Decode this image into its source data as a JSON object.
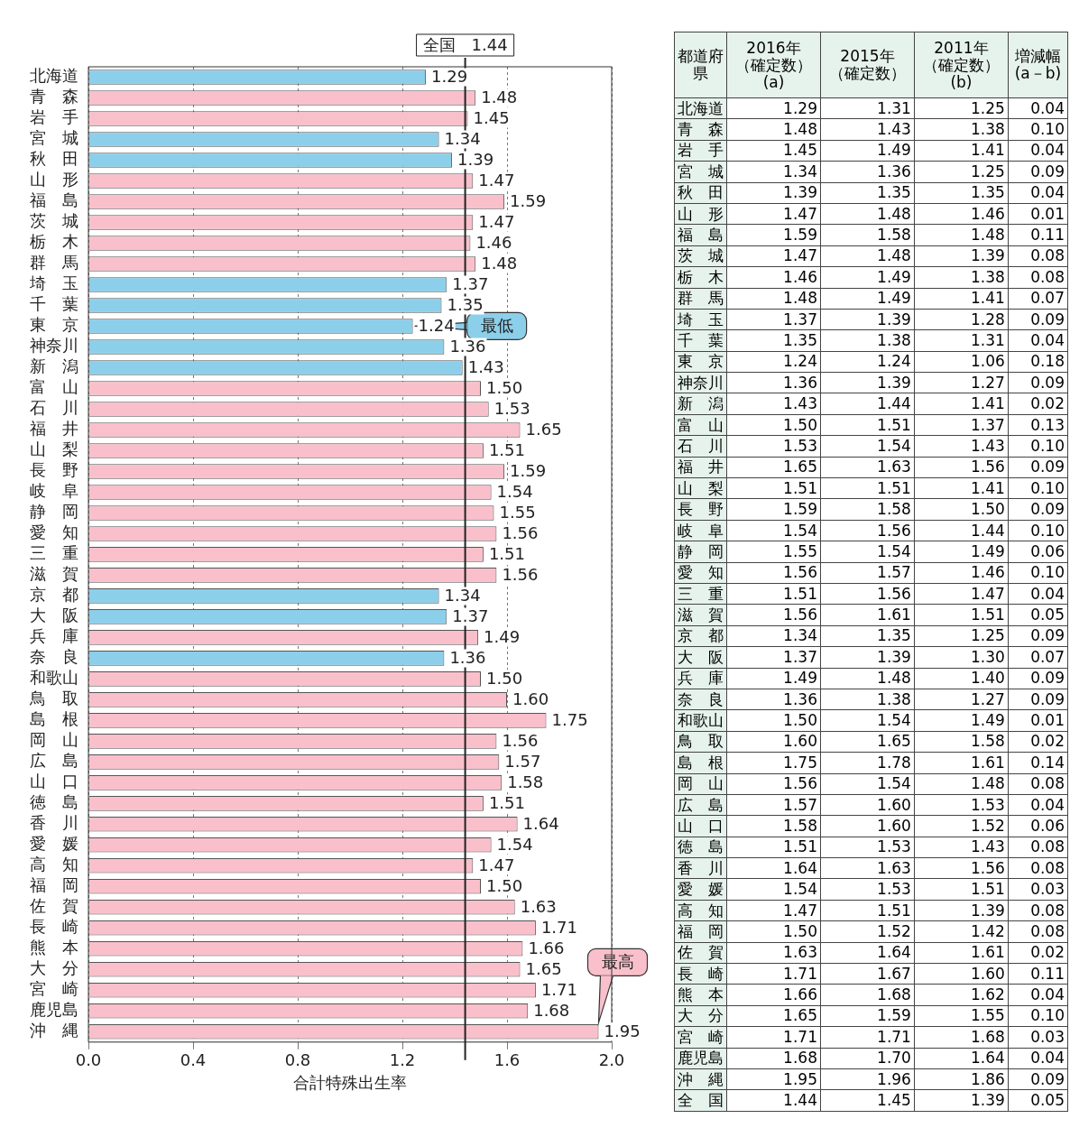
{
  "chart_data": [
    {
      "type": "bar",
      "orientation": "horizontal",
      "xlabel": "合計特殊出生率",
      "categories": [
        "北海道",
        "青　森",
        "岩　手",
        "宮　城",
        "秋　田",
        "山　形",
        "福　島",
        "茨　城",
        "栃　木",
        "群　馬",
        "埼　玉",
        "千　葉",
        "東　京",
        "神奈川",
        "新　潟",
        "富　山",
        "石　川",
        "福　井",
        "山　梨",
        "長　野",
        "岐　阜",
        "静　岡",
        "愛　知",
        "三　重",
        "滋　賀",
        "京　都",
        "大　阪",
        "兵　庫",
        "奈　良",
        "和歌山",
        "鳥　取",
        "島　根",
        "岡　山",
        "広　島",
        "山　口",
        "徳　島",
        "香　川",
        "愛　媛",
        "高　知",
        "福　岡",
        "佐　賀",
        "長　崎",
        "熊　本",
        "大　分",
        "宮　崎",
        "鹿児島",
        "沖　縄"
      ],
      "values": [
        1.29,
        1.48,
        1.45,
        1.34,
        1.39,
        1.47,
        1.59,
        1.47,
        1.46,
        1.48,
        1.37,
        1.35,
        1.24,
        1.36,
        1.43,
        1.5,
        1.53,
        1.65,
        1.51,
        1.59,
        1.54,
        1.55,
        1.56,
        1.51,
        1.56,
        1.34,
        1.37,
        1.49,
        1.36,
        1.5,
        1.6,
        1.75,
        1.56,
        1.57,
        1.58,
        1.51,
        1.64,
        1.54,
        1.47,
        1.5,
        1.63,
        1.71,
        1.66,
        1.65,
        1.71,
        1.68,
        1.95
      ],
      "value_labels": [
        "1.29",
        "1.48",
        "1.45",
        "1.34",
        "1.39",
        "1.47",
        "1.59",
        "1.47",
        "1.46",
        "1.48",
        "1.37",
        "1.35",
        "1.24",
        "1.36",
        "1.43",
        "1.50",
        "1.53",
        "1.65",
        "1.51",
        "1.59",
        "1.54",
        "1.55",
        "1.56",
        "1.51",
        "1.56",
        "1.34",
        "1.37",
        "1.49",
        "1.36",
        "1.50",
        "1.60",
        "1.75",
        "1.56",
        "1.57",
        "1.58",
        "1.51",
        "1.64",
        "1.54",
        "1.47",
        "1.50",
        "1.63",
        "1.71",
        "1.66",
        "1.65",
        "1.71",
        "1.68",
        "1.95"
      ],
      "colors": [
        "#8ccfea",
        "#f9c0cb",
        "#f9c0cb",
        "#8ccfea",
        "#8ccfea",
        "#f9c0cb",
        "#f9c0cb",
        "#f9c0cb",
        "#f9c0cb",
        "#f9c0cb",
        "#8ccfea",
        "#8ccfea",
        "#8ccfea",
        "#8ccfea",
        "#8ccfea",
        "#f9c0cb",
        "#f9c0cb",
        "#f9c0cb",
        "#f9c0cb",
        "#f9c0cb",
        "#f9c0cb",
        "#f9c0cb",
        "#f9c0cb",
        "#f9c0cb",
        "#f9c0cb",
        "#8ccfea",
        "#8ccfea",
        "#f9c0cb",
        "#8ccfea",
        "#f9c0cb",
        "#f9c0cb",
        "#f9c0cb",
        "#f9c0cb",
        "#f9c0cb",
        "#f9c0cb",
        "#f9c0cb",
        "#f9c0cb",
        "#f9c0cb",
        "#f9c0cb",
        "#f9c0cb",
        "#f9c0cb",
        "#f9c0cb",
        "#f9c0cb",
        "#f9c0cb",
        "#f9c0cb",
        "#f9c0cb",
        "#f9c0cb"
      ],
      "xlim": [
        0,
        2.0
      ],
      "xticks": [
        {
          "value": 0,
          "label": "0.0"
        },
        {
          "value": 0.4,
          "label": "0.4"
        },
        {
          "value": 0.8,
          "label": "0.8"
        },
        {
          "value": 1.2,
          "label": "1.2"
        },
        {
          "value": 1.6,
          "label": "1.6"
        },
        {
          "value": 2.0,
          "label": "2.0"
        }
      ],
      "grid": "x",
      "ref_lines": [
        {
          "axis": "x",
          "value": 1.44,
          "label": "全国　1.44",
          "color": "#222222"
        }
      ],
      "annotations": [
        {
          "text": "最低",
          "x": 1.24,
          "y": "東　京"
        },
        {
          "text": "最高",
          "x": 1.95,
          "y": "沖　縄"
        }
      ]
    },
    {
      "type": "heatmap",
      "ylabel": "都道府県",
      "categories": [
        "2016年（確定数）(a)",
        "2015年（確定数）",
        "2011年（確定数）(b)",
        "増減幅(a－b)"
      ],
      "y_categories": [
        "北海道",
        "青　森",
        "岩　手",
        "宮　城",
        "秋　田",
        "山　形",
        "福　島",
        "茨　城",
        "栃　木",
        "群　馬",
        "埼　玉",
        "千　葉",
        "東　京",
        "神奈川",
        "新　潟",
        "富　山",
        "石　川",
        "福　井",
        "山　梨",
        "長　野",
        "岐　阜",
        "静　岡",
        "愛　知",
        "三　重",
        "滋　賀",
        "京　都",
        "大　阪",
        "兵　庫",
        "奈　良",
        "和歌山",
        "鳥　取",
        "島　根",
        "岡　山",
        "広　島",
        "山　口",
        "徳　島",
        "香　川",
        "愛　媛",
        "高　知",
        "福　岡",
        "佐　賀",
        "長　崎",
        "熊　本",
        "大　分",
        "宮　崎",
        "鹿児島",
        "沖　縄",
        "全　国"
      ],
      "cells": [
        [
          1.29,
          1.31,
          1.25,
          0.04
        ],
        [
          1.48,
          1.43,
          1.38,
          0.1
        ],
        [
          1.45,
          1.49,
          1.41,
          0.04
        ],
        [
          1.34,
          1.36,
          1.25,
          0.09
        ],
        [
          1.39,
          1.35,
          1.35,
          0.04
        ],
        [
          1.47,
          1.48,
          1.46,
          0.01
        ],
        [
          1.59,
          1.58,
          1.48,
          0.11
        ],
        [
          1.47,
          1.48,
          1.39,
          0.08
        ],
        [
          1.46,
          1.49,
          1.38,
          0.08
        ],
        [
          1.48,
          1.49,
          1.41,
          0.07
        ],
        [
          1.37,
          1.39,
          1.28,
          0.09
        ],
        [
          1.35,
          1.38,
          1.31,
          0.04
        ],
        [
          1.24,
          1.24,
          1.06,
          0.18
        ],
        [
          1.36,
          1.39,
          1.27,
          0.09
        ],
        [
          1.43,
          1.44,
          1.41,
          0.02
        ],
        [
          1.5,
          1.51,
          1.37,
          0.13
        ],
        [
          1.53,
          1.54,
          1.43,
          0.1
        ],
        [
          1.65,
          1.63,
          1.56,
          0.09
        ],
        [
          1.51,
          1.51,
          1.41,
          0.1
        ],
        [
          1.59,
          1.58,
          1.5,
          0.09
        ],
        [
          1.54,
          1.56,
          1.44,
          0.1
        ],
        [
          1.55,
          1.54,
          1.49,
          0.06
        ],
        [
          1.56,
          1.57,
          1.46,
          0.1
        ],
        [
          1.51,
          1.56,
          1.47,
          0.04
        ],
        [
          1.56,
          1.61,
          1.51,
          0.05
        ],
        [
          1.34,
          1.35,
          1.25,
          0.09
        ],
        [
          1.37,
          1.39,
          1.3,
          0.07
        ],
        [
          1.49,
          1.48,
          1.4,
          0.09
        ],
        [
          1.36,
          1.38,
          1.27,
          0.09
        ],
        [
          1.5,
          1.54,
          1.49,
          0.01
        ],
        [
          1.6,
          1.65,
          1.58,
          0.02
        ],
        [
          1.75,
          1.78,
          1.61,
          0.14
        ],
        [
          1.56,
          1.54,
          1.48,
          0.08
        ],
        [
          1.57,
          1.6,
          1.53,
          0.04
        ],
        [
          1.58,
          1.6,
          1.52,
          0.06
        ],
        [
          1.51,
          1.53,
          1.43,
          0.08
        ],
        [
          1.64,
          1.63,
          1.56,
          0.08
        ],
        [
          1.54,
          1.53,
          1.51,
          0.03
        ],
        [
          1.47,
          1.51,
          1.39,
          0.08
        ],
        [
          1.5,
          1.52,
          1.42,
          0.08
        ],
        [
          1.63,
          1.64,
          1.61,
          0.02
        ],
        [
          1.71,
          1.67,
          1.6,
          0.11
        ],
        [
          1.66,
          1.68,
          1.62,
          0.04
        ],
        [
          1.65,
          1.59,
          1.55,
          0.1
        ],
        [
          1.71,
          1.71,
          1.68,
          0.03
        ],
        [
          1.68,
          1.7,
          1.64,
          0.04
        ],
        [
          1.95,
          1.96,
          1.86,
          0.09
        ],
        [
          1.44,
          1.45,
          1.39,
          0.05
        ]
      ],
      "cell_labels": [
        [
          "1.29",
          "1.31",
          "1.25",
          "0.04"
        ],
        [
          "1.48",
          "1.43",
          "1.38",
          "0.10"
        ],
        [
          "1.45",
          "1.49",
          "1.41",
          "0.04"
        ],
        [
          "1.34",
          "1.36",
          "1.25",
          "0.09"
        ],
        [
          "1.39",
          "1.35",
          "1.35",
          "0.04"
        ],
        [
          "1.47",
          "1.48",
          "1.46",
          "0.01"
        ],
        [
          "1.59",
          "1.58",
          "1.48",
          "0.11"
        ],
        [
          "1.47",
          "1.48",
          "1.39",
          "0.08"
        ],
        [
          "1.46",
          "1.49",
          "1.38",
          "0.08"
        ],
        [
          "1.48",
          "1.49",
          "1.41",
          "0.07"
        ],
        [
          "1.37",
          "1.39",
          "1.28",
          "0.09"
        ],
        [
          "1.35",
          "1.38",
          "1.31",
          "0.04"
        ],
        [
          "1.24",
          "1.24",
          "1.06",
          "0.18"
        ],
        [
          "1.36",
          "1.39",
          "1.27",
          "0.09"
        ],
        [
          "1.43",
          "1.44",
          "1.41",
          "0.02"
        ],
        [
          "1.50",
          "1.51",
          "1.37",
          "0.13"
        ],
        [
          "1.53",
          "1.54",
          "1.43",
          "0.10"
        ],
        [
          "1.65",
          "1.63",
          "1.56",
          "0.09"
        ],
        [
          "1.51",
          "1.51",
          "1.41",
          "0.10"
        ],
        [
          "1.59",
          "1.58",
          "1.50",
          "0.09"
        ],
        [
          "1.54",
          "1.56",
          "1.44",
          "0.10"
        ],
        [
          "1.55",
          "1.54",
          "1.49",
          "0.06"
        ],
        [
          "1.56",
          "1.57",
          "1.46",
          "0.10"
        ],
        [
          "1.51",
          "1.56",
          "1.47",
          "0.04"
        ],
        [
          "1.56",
          "1.61",
          "1.51",
          "0.05"
        ],
        [
          "1.34",
          "1.35",
          "1.25",
          "0.09"
        ],
        [
          "1.37",
          "1.39",
          "1.30",
          "0.07"
        ],
        [
          "1.49",
          "1.48",
          "1.40",
          "0.09"
        ],
        [
          "1.36",
          "1.38",
          "1.27",
          "0.09"
        ],
        [
          "1.50",
          "1.54",
          "1.49",
          "0.01"
        ],
        [
          "1.60",
          "1.65",
          "1.58",
          "0.02"
        ],
        [
          "1.75",
          "1.78",
          "1.61",
          "0.14"
        ],
        [
          "1.56",
          "1.54",
          "1.48",
          "0.08"
        ],
        [
          "1.57",
          "1.60",
          "1.53",
          "0.04"
        ],
        [
          "1.58",
          "1.60",
          "1.52",
          "0.06"
        ],
        [
          "1.51",
          "1.53",
          "1.43",
          "0.08"
        ],
        [
          "1.64",
          "1.63",
          "1.56",
          "0.08"
        ],
        [
          "1.54",
          "1.53",
          "1.51",
          "0.03"
        ],
        [
          "1.47",
          "1.51",
          "1.39",
          "0.08"
        ],
        [
          "1.50",
          "1.52",
          "1.42",
          "0.08"
        ],
        [
          "1.63",
          "1.64",
          "1.61",
          "0.02"
        ],
        [
          "1.71",
          "1.67",
          "1.60",
          "0.11"
        ],
        [
          "1.66",
          "1.68",
          "1.62",
          "0.04"
        ],
        [
          "1.65",
          "1.59",
          "1.55",
          "0.10"
        ],
        [
          "1.71",
          "1.71",
          "1.68",
          "0.03"
        ],
        [
          "1.68",
          "1.70",
          "1.64",
          "0.04"
        ],
        [
          "1.95",
          "1.96",
          "1.86",
          "0.09"
        ],
        [
          "1.44",
          "1.45",
          "1.39",
          "0.05"
        ]
      ]
    }
  ]
}
